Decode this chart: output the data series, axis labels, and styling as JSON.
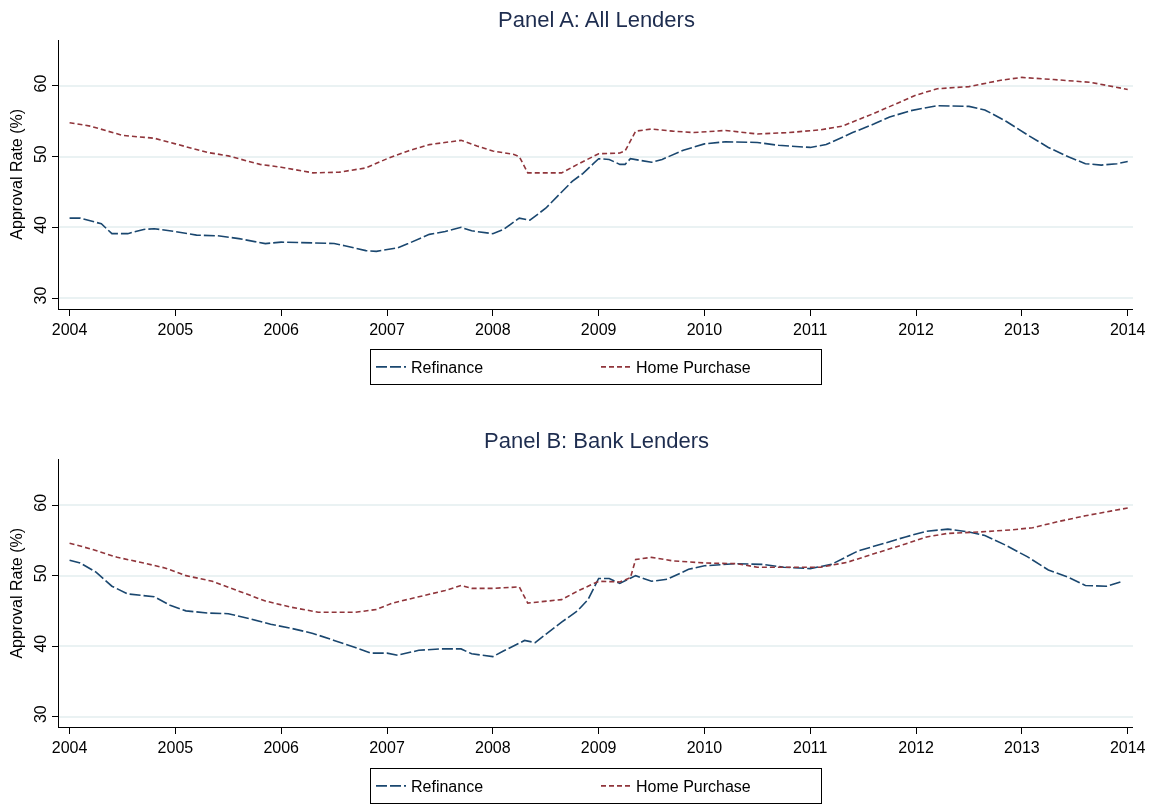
{
  "chart_data": [
    {
      "type": "line",
      "title": "Panel A: All Lenders",
      "ylabel": "Approval Rate (%)",
      "xlim": [
        2003.9,
        2014.05
      ],
      "ylim": [
        28.5,
        66.5
      ],
      "xticks": [
        2004,
        2005,
        2006,
        2007,
        2008,
        2009,
        2010,
        2011,
        2012,
        2013,
        2014
      ],
      "yticks": [
        30,
        40,
        50,
        60
      ],
      "grid": "y",
      "legend": "bottom",
      "marker": "none",
      "series": [
        {
          "name": "Refinance",
          "color": "#1a476f",
          "line_style": "dashed",
          "x": [
            2004.0,
            2004.1,
            2004.3,
            2004.4,
            2004.55,
            2004.7,
            2004.8,
            2005.0,
            2005.2,
            2005.4,
            2005.6,
            2005.85,
            2006.0,
            2006.3,
            2006.5,
            2006.6,
            2006.8,
            2006.9,
            2007.1,
            2007.2,
            2007.4,
            2007.55,
            2007.7,
            2007.8,
            2008.0,
            2008.1,
            2008.25,
            2008.35,
            2008.5,
            2008.75,
            2008.85,
            2008.95,
            2009.0,
            2009.1,
            2009.2,
            2009.25,
            2009.3,
            2009.5,
            2009.6,
            2009.8,
            2010.0,
            2010.2,
            2010.5,
            2010.7,
            2011.0,
            2011.15,
            2011.4,
            2011.6,
            2011.75,
            2011.95,
            2012.2,
            2012.5,
            2012.65,
            2012.85,
            2013.05,
            2013.25,
            2013.45,
            2013.6,
            2013.75,
            2013.9,
            2014.0
          ],
          "values": [
            41.3,
            41.3,
            40.5,
            39.1,
            39.1,
            39.7,
            39.8,
            39.4,
            38.9,
            38.8,
            38.4,
            37.7,
            37.9,
            37.8,
            37.7,
            37.4,
            36.7,
            36.6,
            37.1,
            37.7,
            39.0,
            39.4,
            40.0,
            39.5,
            39.1,
            39.7,
            41.3,
            41.0,
            42.7,
            46.5,
            47.6,
            49.0,
            49.7,
            49.6,
            48.9,
            48.9,
            49.7,
            49.2,
            49.6,
            50.9,
            51.8,
            52.1,
            52.0,
            51.6,
            51.3,
            51.7,
            53.4,
            54.6,
            55.6,
            56.5,
            57.2,
            57.1,
            56.6,
            55.0,
            53.1,
            51.3,
            49.9,
            49.0,
            48.8,
            49.0,
            49.3
          ]
        },
        {
          "name": "Home Purchase",
          "color": "#90353b",
          "line_style": "dashed",
          "x": [
            2004.0,
            2004.2,
            2004.5,
            2004.8,
            2005.0,
            2005.3,
            2005.5,
            2005.8,
            2006.0,
            2006.3,
            2006.55,
            2006.8,
            2007.0,
            2007.2,
            2007.4,
            2007.6,
            2007.7,
            2007.85,
            2008.0,
            2008.2,
            2008.25,
            2008.33,
            2008.65,
            2008.8,
            2009.0,
            2009.2,
            2009.25,
            2009.35,
            2009.5,
            2009.7,
            2009.9,
            2010.2,
            2010.5,
            2010.8,
            2011.1,
            2011.3,
            2011.6,
            2011.8,
            2012.0,
            2012.2,
            2012.5,
            2012.8,
            2013.0,
            2013.3,
            2013.65,
            2014.0
          ],
          "values": [
            54.8,
            54.3,
            53.0,
            52.6,
            51.8,
            50.6,
            50.1,
            48.9,
            48.5,
            47.7,
            47.8,
            48.4,
            49.7,
            50.8,
            51.7,
            52.1,
            52.3,
            51.5,
            50.8,
            50.3,
            50.0,
            47.7,
            47.7,
            48.9,
            50.4,
            50.5,
            50.8,
            53.6,
            53.9,
            53.6,
            53.4,
            53.7,
            53.2,
            53.4,
            53.8,
            54.3,
            56.1,
            57.4,
            58.7,
            59.6,
            59.9,
            60.8,
            61.2,
            60.9,
            60.5,
            59.5
          ]
        }
      ]
    },
    {
      "type": "line",
      "title": "Panel B: Bank Lenders",
      "ylabel": "Approval Rate (%)",
      "xlim": [
        2003.9,
        2014.05
      ],
      "ylim": [
        28.5,
        66.5
      ],
      "xticks": [
        2004,
        2005,
        2006,
        2007,
        2008,
        2009,
        2010,
        2011,
        2012,
        2013,
        2014
      ],
      "yticks": [
        30,
        40,
        50,
        60
      ],
      "grid": "y",
      "legend": "bottom",
      "marker": "none",
      "series": [
        {
          "name": "Refinance",
          "color": "#1a476f",
          "line_style": "dashed",
          "x": [
            2004.0,
            2004.1,
            2004.25,
            2004.4,
            2004.55,
            2004.8,
            2004.95,
            2005.1,
            2005.3,
            2005.5,
            2005.7,
            2005.9,
            2006.1,
            2006.3,
            2006.5,
            2006.7,
            2006.85,
            2007.0,
            2007.1,
            2007.3,
            2007.5,
            2007.7,
            2007.8,
            2008.0,
            2008.1,
            2008.3,
            2008.4,
            2008.65,
            2008.8,
            2008.9,
            2009.0,
            2009.1,
            2009.2,
            2009.35,
            2009.5,
            2009.65,
            2009.85,
            2010.0,
            2010.3,
            2010.55,
            2010.75,
            2011.0,
            2011.2,
            2011.45,
            2011.7,
            2011.9,
            2012.1,
            2012.3,
            2012.5,
            2012.65,
            2012.85,
            2013.05,
            2013.25,
            2013.45,
            2013.6,
            2013.8,
            2013.95
          ],
          "values": [
            52.2,
            51.8,
            50.5,
            48.5,
            47.4,
            47.0,
            45.8,
            45.0,
            44.7,
            44.6,
            43.9,
            43.1,
            42.5,
            41.8,
            40.8,
            39.8,
            39.0,
            39.0,
            38.7,
            39.4,
            39.6,
            39.6,
            38.9,
            38.5,
            39.3,
            40.8,
            40.5,
            43.4,
            45.0,
            46.6,
            49.6,
            49.6,
            48.9,
            50.0,
            49.2,
            49.5,
            50.9,
            51.4,
            51.7,
            51.6,
            51.2,
            51.0,
            51.6,
            53.5,
            54.6,
            55.5,
            56.3,
            56.6,
            56.2,
            55.7,
            54.3,
            52.7,
            50.8,
            49.7,
            48.6,
            48.5,
            49.2
          ]
        },
        {
          "name": "Home Purchase",
          "color": "#90353b",
          "line_style": "dashed",
          "x": [
            2004.0,
            2004.2,
            2004.45,
            2004.7,
            2004.9,
            2005.1,
            2005.35,
            2005.6,
            2005.85,
            2006.1,
            2006.35,
            2006.7,
            2006.9,
            2007.05,
            2007.3,
            2007.55,
            2007.7,
            2007.8,
            2008.0,
            2008.25,
            2008.33,
            2008.65,
            2008.8,
            2009.0,
            2009.2,
            2009.3,
            2009.35,
            2009.5,
            2009.7,
            2010.0,
            2010.3,
            2010.5,
            2010.75,
            2011.1,
            2011.35,
            2011.6,
            2011.9,
            2012.1,
            2012.3,
            2012.6,
            2012.9,
            2013.1,
            2013.35,
            2013.6,
            2013.85,
            2014.0
          ],
          "values": [
            54.6,
            53.8,
            52.6,
            51.8,
            51.1,
            50.0,
            49.2,
            47.8,
            46.4,
            45.5,
            44.8,
            44.8,
            45.2,
            46.1,
            47.0,
            47.9,
            48.6,
            48.2,
            48.2,
            48.4,
            46.1,
            46.6,
            47.8,
            49.2,
            49.1,
            49.7,
            52.3,
            52.6,
            52.1,
            51.8,
            51.7,
            51.2,
            51.2,
            51.2,
            51.9,
            53.1,
            54.5,
            55.5,
            56.0,
            56.2,
            56.5,
            56.8,
            57.7,
            58.5,
            59.2,
            59.6
          ]
        }
      ]
    }
  ]
}
